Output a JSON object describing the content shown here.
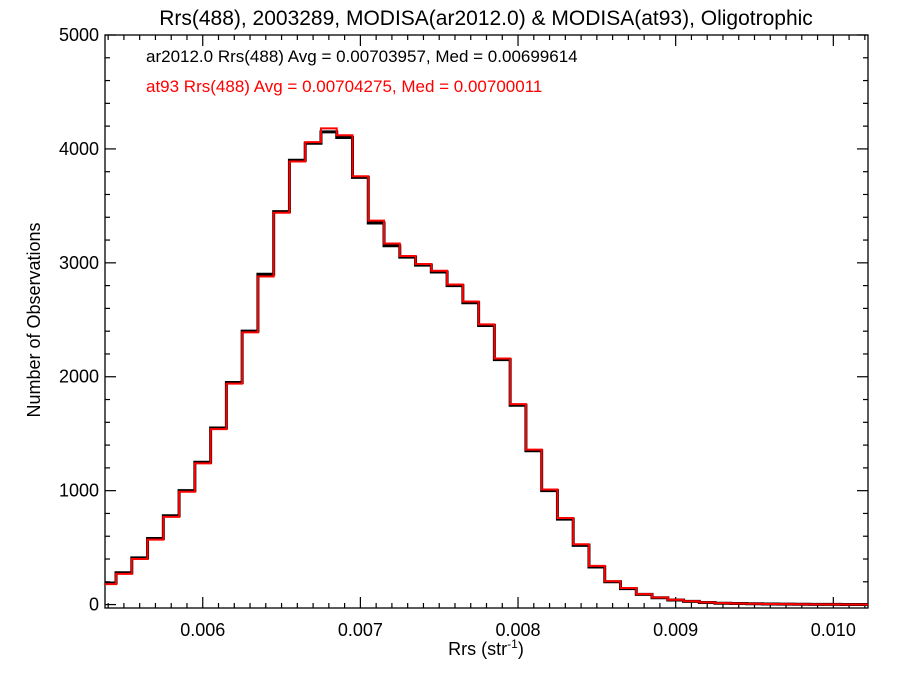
{
  "chart_data": {
    "type": "line",
    "title": "Rrs(488), 2003289, MODISA(ar2012.0) & MODISA(at93), Oligotrophic",
    "xlabel": "Rrs (str",
    "xlabel_sup": "-1",
    "xlabel_close": ")",
    "ylabel": "Number of Observations",
    "xlim": [
      0.00538,
      0.01022
    ],
    "ylim": [
      -30,
      5000
    ],
    "xticks": [
      0.006,
      0.007,
      0.008,
      0.009,
      0.01
    ],
    "xtick_labels": [
      "0.006",
      "0.007",
      "0.008",
      "0.009",
      "0.010"
    ],
    "yticks": [
      0,
      1000,
      2000,
      3000,
      4000,
      5000
    ],
    "ytick_labels": [
      "0",
      "1000",
      "2000",
      "3000",
      "4000",
      "5000"
    ],
    "grid": false,
    "legend_position": "top-left",
    "series": [
      {
        "name": "ar2012.0",
        "legend_text": "ar2012.0 Rrs(488) Avg = 0.00703957, Med = 0.00699614",
        "color": "#000000",
        "x": [
          0.0054,
          0.0055,
          0.0056,
          0.0057,
          0.0058,
          0.0059,
          0.006,
          0.0061,
          0.0062,
          0.0063,
          0.0064,
          0.0065,
          0.0066,
          0.0067,
          0.0068,
          0.0069,
          0.007,
          0.0071,
          0.0072,
          0.0073,
          0.0074,
          0.0075,
          0.0076,
          0.0077,
          0.0078,
          0.0079,
          0.008,
          0.0081,
          0.0082,
          0.0083,
          0.0084,
          0.0085,
          0.0086,
          0.0087,
          0.0088,
          0.0089,
          0.009,
          0.0091,
          0.0092,
          0.0093,
          0.0094,
          0.0095,
          0.0096,
          0.0097,
          0.0098,
          0.0099,
          0.01,
          0.0101,
          0.0102
        ],
        "y": [
          190,
          280,
          410,
          580,
          780,
          1000,
          1250,
          1550,
          1950,
          2400,
          2900,
          3450,
          3900,
          4050,
          4150,
          4100,
          3750,
          3350,
          3150,
          3050,
          2980,
          2920,
          2800,
          2650,
          2450,
          2150,
          1750,
          1350,
          1000,
          750,
          520,
          330,
          200,
          140,
          90,
          60,
          40,
          28,
          18,
          12,
          9,
          7,
          5,
          4,
          3,
          2,
          2,
          1,
          1
        ]
      },
      {
        "name": "at93",
        "legend_text": "at93 Rrs(488) Avg = 0.00704275, Med = 0.00700011",
        "color": "#ff0000",
        "x": [
          0.0054,
          0.0055,
          0.0056,
          0.0057,
          0.0058,
          0.0059,
          0.006,
          0.0061,
          0.0062,
          0.0063,
          0.0064,
          0.0065,
          0.0066,
          0.0067,
          0.0068,
          0.0069,
          0.007,
          0.0071,
          0.0072,
          0.0073,
          0.0074,
          0.0075,
          0.0076,
          0.0077,
          0.0078,
          0.0079,
          0.008,
          0.0081,
          0.0082,
          0.0083,
          0.0084,
          0.0085,
          0.0086,
          0.0087,
          0.0088,
          0.0089,
          0.009,
          0.0091,
          0.0092,
          0.0093,
          0.0094,
          0.0095,
          0.0096,
          0.0097,
          0.0098,
          0.0099,
          0.01,
          0.0101,
          0.0102
        ],
        "y": [
          180,
          270,
          400,
          570,
          770,
          990,
          1240,
          1540,
          1940,
          2390,
          2880,
          3440,
          3890,
          4060,
          4180,
          4120,
          3760,
          3370,
          3170,
          3060,
          2990,
          2930,
          2810,
          2660,
          2460,
          2160,
          1760,
          1360,
          1010,
          760,
          530,
          340,
          205,
          145,
          92,
          62,
          42,
          29,
          19,
          13,
          9,
          7,
          5,
          4,
          3,
          2,
          2,
          1,
          1
        ]
      }
    ]
  }
}
